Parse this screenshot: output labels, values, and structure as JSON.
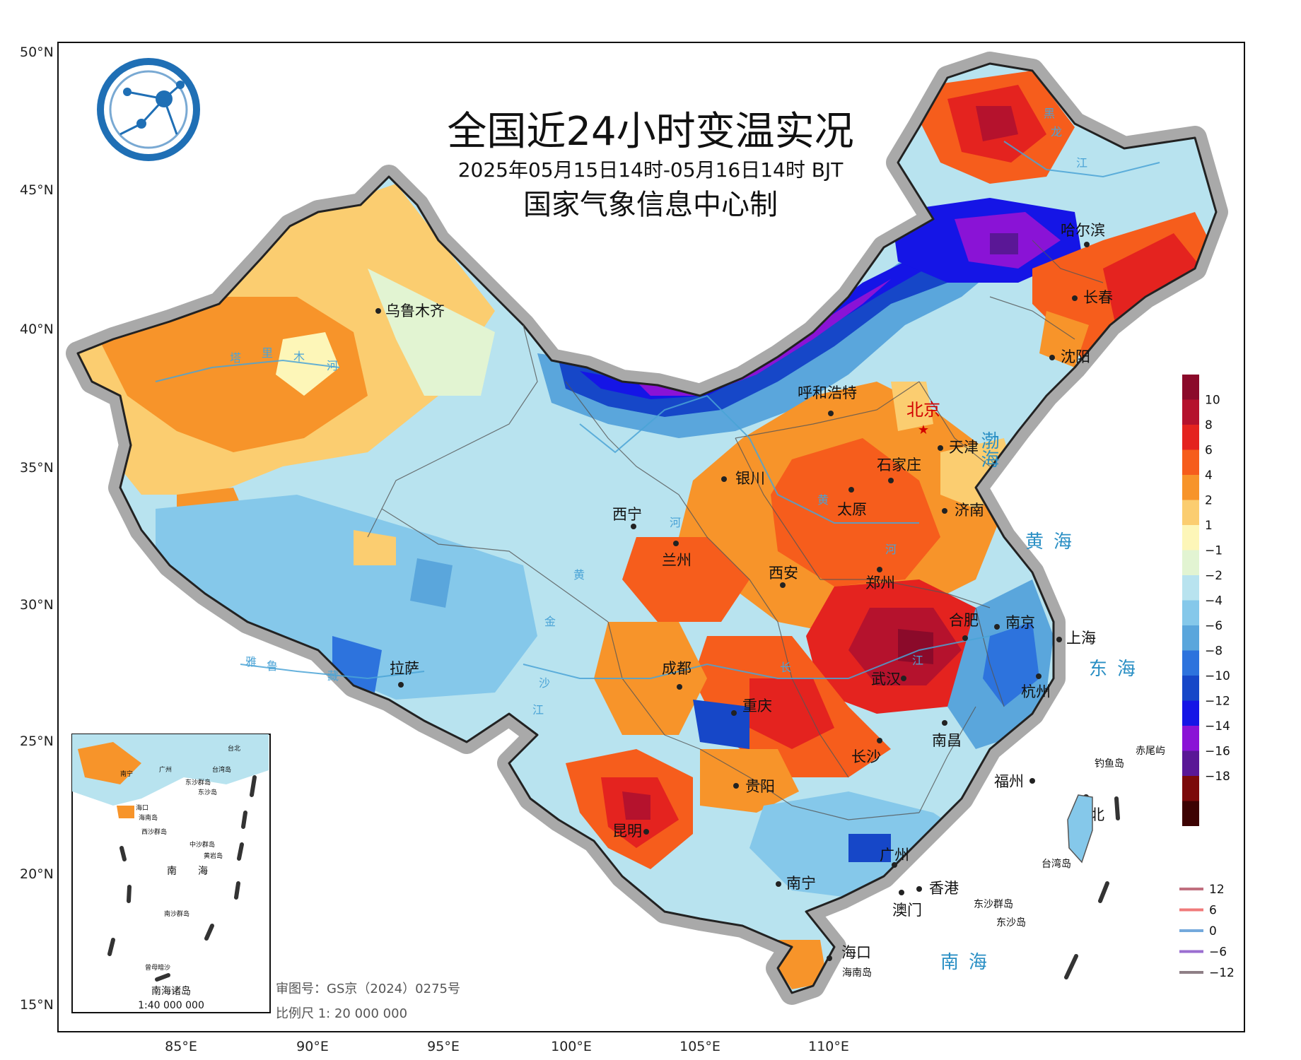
{
  "title": "全国近24小时变温实况",
  "subtitle": "2025年05月15日14时-05月16日14时 BJT",
  "maker": "国家气象信息中心制",
  "lat_labels": [
    "50°N",
    "45°N",
    "40°N",
    "35°N",
    "30°N",
    "25°N",
    "20°N",
    "15°N"
  ],
  "lon_labels": [
    "85°E",
    "90°E",
    "95°E",
    "100°E",
    "105°E",
    "110°E"
  ],
  "capital": "北京",
  "cities": [
    "乌鲁木齐",
    "哈尔滨",
    "长春",
    "沈阳",
    "呼和浩特",
    "天津",
    "石家庄",
    "银川",
    "太原",
    "济南",
    "西宁",
    "兰州",
    "西安",
    "郑州",
    "合肥",
    "南京",
    "上海",
    "拉萨",
    "成都",
    "武汉",
    "杭州",
    "重庆",
    "南昌",
    "长沙",
    "福州",
    "贵阳",
    "台北",
    "昆明",
    "广州",
    "南宁",
    "香港",
    "澳门",
    "海口"
  ],
  "seas": [
    "渤海",
    "黄海",
    "东海",
    "南海"
  ],
  "rivers": [
    "塔",
    "里",
    "木",
    "河",
    "黑",
    "龙",
    "江",
    "黄",
    "河",
    "河",
    "黄",
    "长",
    "江",
    "金",
    "沙",
    "江",
    "雅",
    "鲁",
    "藏"
  ],
  "islands": [
    "钓鱼岛",
    "赤尾屿",
    "台湾岛",
    "东沙群岛",
    "东沙岛",
    "海南岛"
  ],
  "inset": {
    "name": "南海诸岛",
    "scale": "1:40 000 000",
    "labels": [
      "南宁",
      "广州",
      "台北",
      "台湾岛",
      "东沙群岛",
      "东沙岛",
      "海口",
      "海南岛",
      "西沙群岛",
      "中沙群岛",
      "黄岩岛",
      "南",
      "海",
      "南沙群岛",
      "曾母暗沙"
    ]
  },
  "review_no": "审图号：GS京（2024）0275号",
  "scale_text": "比例尺 1: 20 000 000",
  "legend_fill": {
    "labels": [
      "10",
      "8",
      "6",
      "4",
      "2",
      "1",
      "−1",
      "−2",
      "−4",
      "−6",
      "−8",
      "−10",
      "−12",
      "−14",
      "−16",
      "−18"
    ],
    "colors": [
      "#8b0a2a",
      "#b5122d",
      "#e4231f",
      "#f65d1c",
      "#f7942a",
      "#fbcd70",
      "#fdf6b8",
      "#e2f4d2",
      "#b8e3ef",
      "#85c8ea",
      "#5aa6dc",
      "#2d73dd",
      "#1647c8",
      "#1515e6",
      "#8a13d6",
      "#5a1796",
      "#7c0a0a",
      "#3d0303"
    ]
  },
  "legend_lines": {
    "labels": [
      "12",
      "6",
      "0",
      "−6",
      "−12"
    ],
    "colors": [
      "#c06f7f",
      "#f07a7a",
      "#74a9dc",
      "#9b6ed0",
      "#8f7f86"
    ]
  },
  "colors": {
    "map_bg": "#ffffff",
    "outline_halo": "#a9a9a9",
    "capital_red": "#d20000",
    "sea_label": "#2a8fc4"
  }
}
